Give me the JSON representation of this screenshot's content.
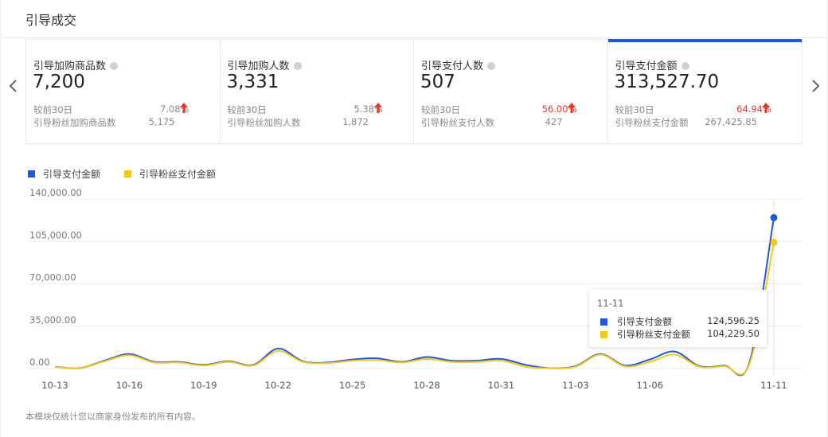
{
  "header": {
    "title": "引导成交"
  },
  "nav": {
    "prev_icon": "chevron-left-icon",
    "next_icon": "chevron-right-icon"
  },
  "metrics": [
    {
      "label": "引导加购商品数",
      "value": "7,200",
      "compare_label": "较前30日",
      "compare_value": "7.08%",
      "compare_up": true,
      "compare_highlight": false,
      "fan_label": "引导粉丝加购商品数",
      "fan_value": "5,175"
    },
    {
      "label": "引导加购人数",
      "value": "3,331",
      "compare_label": "较前30日",
      "compare_value": "5.38%",
      "compare_up": true,
      "compare_highlight": false,
      "fan_label": "引导粉丝加购人数",
      "fan_value": "1,872"
    },
    {
      "label": "引导支付人数",
      "value": "507",
      "compare_label": "较前30日",
      "compare_value": "56.00%",
      "compare_up": true,
      "compare_highlight": true,
      "fan_label": "引导粉丝支付人数",
      "fan_value": "427"
    },
    {
      "label": "引导支付金额",
      "value": "313,527.70",
      "compare_label": "较前30日",
      "compare_value": "64.94%",
      "compare_up": true,
      "compare_highlight": true,
      "fan_label": "引导粉丝支付金额",
      "fan_value": "267,425.85",
      "active": true
    }
  ],
  "colors": {
    "accent": "#2257d8",
    "series1": "#2257d8",
    "series2": "#f2c81c",
    "up_arrow": "#e6352a"
  },
  "tooltip": {
    "date": "11-11",
    "rows": [
      {
        "name": "引导支付金额",
        "value": "124,596.25"
      },
      {
        "name": "引导粉丝支付金额",
        "value": "104,229.50"
      }
    ]
  },
  "chart_data": {
    "type": "line",
    "x": [
      "10-13",
      "10-14",
      "10-15",
      "10-16",
      "10-17",
      "10-18",
      "10-19",
      "10-20",
      "10-21",
      "10-22",
      "10-23",
      "10-24",
      "10-25",
      "10-26",
      "10-27",
      "10-28",
      "10-29",
      "10-30",
      "10-31",
      "11-01",
      "11-02",
      "11-03",
      "11-04",
      "11-05",
      "11-06",
      "11-07",
      "11-08",
      "11-09",
      "11-10",
      "11-11"
    ],
    "x_tick_labels": [
      "10-13",
      "10-16",
      "10-19",
      "10-22",
      "10-25",
      "10-28",
      "10-31",
      "11-03",
      "11-06",
      "11-11"
    ],
    "series": [
      {
        "name": "引导支付金额",
        "values": [
          1500,
          300,
          6500,
          12000,
          5500,
          5500,
          3000,
          6000,
          3000,
          16500,
          6000,
          5000,
          7500,
          8500,
          5500,
          9500,
          6500,
          6500,
          8000,
          3000,
          300,
          2000,
          12000,
          2500,
          7500,
          14000,
          2000,
          2500,
          4000,
          124596.25
        ]
      },
      {
        "name": "引导粉丝支付金额",
        "values": [
          1300,
          200,
          6000,
          11000,
          5000,
          5000,
          2500,
          5500,
          2500,
          14500,
          5500,
          4500,
          6500,
          7000,
          5000,
          8000,
          5500,
          5500,
          6500,
          1500,
          200,
          1500,
          11500,
          1800,
          5500,
          11500,
          1500,
          2000,
          3000,
          104229.5
        ]
      }
    ],
    "y_tick_labels": [
      "140,000.00",
      "105,000.00",
      "70,000.00",
      "35,000.00",
      "0.00"
    ],
    "ylim": [
      0,
      140000
    ],
    "grid": true,
    "legend": "top-left"
  },
  "footnote": "本模块仅统计您以商家身份发布的所有内容。"
}
